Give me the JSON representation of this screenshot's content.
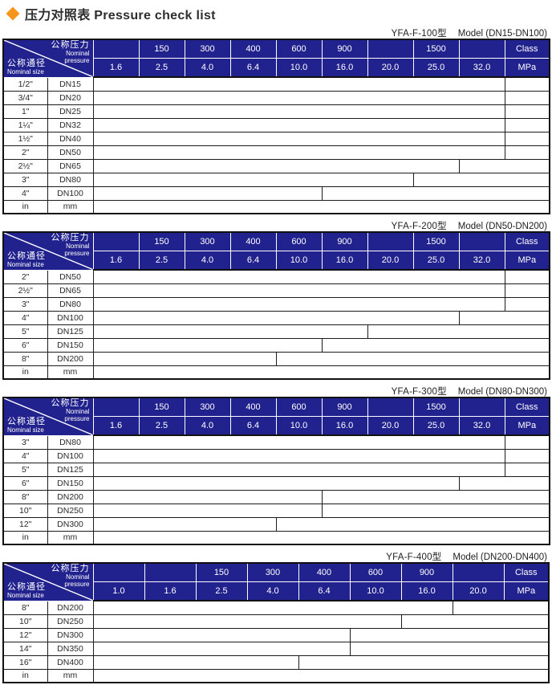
{
  "title": {
    "text": "压力对照表 Pressure check list",
    "diamond_color": "#f7941e"
  },
  "colors": {
    "header_bg": "#22228e",
    "header_text": "#ffffff",
    "bar_cyan": "#29a5da",
    "bar_highlight": "#ffffff",
    "grid": "#1c1c1c",
    "accent_diamond": "#f7941e"
  },
  "corner": {
    "top_cn": "公称压力",
    "top_en1": "Nominal",
    "top_en2": "pressure",
    "bottom_cn": "公称通径",
    "bottom_en": "Nominal size"
  },
  "tables": [
    {
      "model": "YFA-F-100型",
      "range": "Model (DN15-DN100)",
      "class_row": [
        "",
        "150",
        "300",
        "400",
        "600",
        "900",
        "",
        "1500",
        "",
        "Class"
      ],
      "mpa_row": [
        "1.6",
        "2.5",
        "4.0",
        "6.4",
        "10.0",
        "16.0",
        "20.0",
        "25.0",
        "32.0",
        "MPa"
      ],
      "pressure_col_width": 57,
      "rows": [
        {
          "size": "1/2\"",
          "dn": "DN15",
          "bar_cols": 9,
          "max_mpa": "32.0"
        },
        {
          "size": "3/4\"",
          "dn": "DN20",
          "bar_cols": 9,
          "max_mpa": "32.0"
        },
        {
          "size": "1\"",
          "dn": "DN25",
          "bar_cols": 9,
          "max_mpa": "32.0"
        },
        {
          "size": "1¼\"",
          "dn": "DN32",
          "bar_cols": 9,
          "max_mpa": "32.0"
        },
        {
          "size": "1½\"",
          "dn": "DN40",
          "bar_cols": 9,
          "max_mpa": "32.0"
        },
        {
          "size": "2\"",
          "dn": "DN50",
          "bar_cols": 9,
          "max_mpa": "32.0"
        },
        {
          "size": "2½\"",
          "dn": "DN65",
          "bar_cols": 8,
          "max_mpa": "25.0"
        },
        {
          "size": "3\"",
          "dn": "DN80",
          "bar_cols": 7,
          "max_mpa": "20.0"
        },
        {
          "size": "4\"",
          "dn": "DN100",
          "bar_cols": 5,
          "max_mpa": "10.0"
        }
      ],
      "unit_row": [
        "in",
        "mm"
      ]
    },
    {
      "model": "YFA-F-200型",
      "range": "Model (DN50-DN200)",
      "class_row": [
        "",
        "150",
        "300",
        "400",
        "600",
        "900",
        "",
        "1500",
        "",
        "Class"
      ],
      "mpa_row": [
        "1.6",
        "2.5",
        "4.0",
        "6.4",
        "10.0",
        "16.0",
        "20.0",
        "25.0",
        "32.0",
        "MPa"
      ],
      "pressure_col_width": 57,
      "rows": [
        {
          "size": "2\"",
          "dn": "DN50",
          "bar_cols": 9,
          "max_mpa": "32.0"
        },
        {
          "size": "2½\"",
          "dn": "DN65",
          "bar_cols": 9,
          "max_mpa": "32.0"
        },
        {
          "size": "3\"",
          "dn": "DN80",
          "bar_cols": 9,
          "max_mpa": "32.0"
        },
        {
          "size": "4\"",
          "dn": "DN100",
          "bar_cols": 8,
          "max_mpa": "25.0"
        },
        {
          "size": "5\"",
          "dn": "DN125",
          "bar_cols": 6,
          "max_mpa": "16.0"
        },
        {
          "size": "6\"",
          "dn": "DN150",
          "bar_cols": 5,
          "max_mpa": "10.0"
        },
        {
          "size": "8\"",
          "dn": "DN200",
          "bar_cols": 4,
          "max_mpa": "6.4"
        }
      ],
      "unit_row": [
        "in",
        "mm"
      ]
    },
    {
      "model": "YFA-F-300型",
      "range": "Model (DN80-DN300)",
      "class_row": [
        "",
        "150",
        "300",
        "400",
        "600",
        "900",
        "",
        "1500",
        "",
        "Class"
      ],
      "mpa_row": [
        "1.6",
        "2.5",
        "4.0",
        "6.4",
        "10.0",
        "16.0",
        "20.0",
        "25.0",
        "32.0",
        "MPa"
      ],
      "pressure_col_width": 57,
      "rows": [
        {
          "size": "3\"",
          "dn": "DN80",
          "bar_cols": 9,
          "max_mpa": "32.0"
        },
        {
          "size": "4\"",
          "dn": "DN100",
          "bar_cols": 9,
          "max_mpa": "32.0"
        },
        {
          "size": "5\"",
          "dn": "DN125",
          "bar_cols": 9,
          "max_mpa": "32.0"
        },
        {
          "size": "6\"",
          "dn": "DN150",
          "bar_cols": 8,
          "max_mpa": "25.0"
        },
        {
          "size": "8\"",
          "dn": "DN200",
          "bar_cols": 5,
          "max_mpa": "10.0"
        },
        {
          "size": "10\"",
          "dn": "DN250",
          "bar_cols": 5,
          "max_mpa": "10.0"
        },
        {
          "size": "12\"",
          "dn": "DN300",
          "bar_cols": 4,
          "max_mpa": "6.4"
        }
      ],
      "unit_row": [
        "in",
        "mm"
      ]
    },
    {
      "model": "YFA-F-400型",
      "range": "Model (DN200-DN400)",
      "class_row": [
        "",
        "",
        "150",
        "300",
        "400",
        "600",
        "900",
        "",
        "Class"
      ],
      "mpa_row": [
        "1.0",
        "1.6",
        "2.5",
        "4.0",
        "6.4",
        "10.0",
        "16.0",
        "20.0",
        "MPa"
      ],
      "pressure_col_width": 64,
      "rows": [
        {
          "size": "8\"",
          "dn": "DN200",
          "bar_cols": 7,
          "max_mpa": "16.0"
        },
        {
          "size": "10\"",
          "dn": "DN250",
          "bar_cols": 6,
          "max_mpa": "10.0"
        },
        {
          "size": "12\"",
          "dn": "DN300",
          "bar_cols": 5,
          "max_mpa": "6.4"
        },
        {
          "size": "14\"",
          "dn": "DN350",
          "bar_cols": 5,
          "max_mpa": "6.4"
        },
        {
          "size": "16\"",
          "dn": "DN400",
          "bar_cols": 4,
          "max_mpa": "4.0"
        }
      ],
      "unit_row": [
        "in",
        "mm"
      ]
    }
  ]
}
